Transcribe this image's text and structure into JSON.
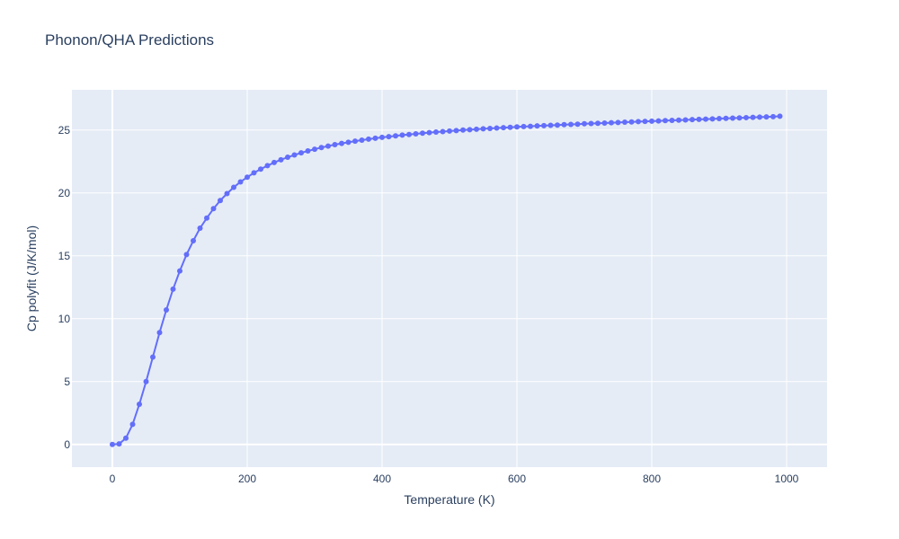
{
  "chart_data": {
    "type": "line",
    "title": "Phonon/QHA Predictions",
    "xlabel": "Temperature (K)",
    "ylabel": "Cp polyfit (J/K/mol)",
    "xlim": [
      -60,
      1060
    ],
    "ylim": [
      -1.8,
      28.2
    ],
    "xticks": [
      0,
      200,
      400,
      600,
      800,
      1000
    ],
    "yticks": [
      0,
      5,
      10,
      15,
      20,
      25
    ],
    "grid": true,
    "legend": "none",
    "colors": {
      "series": "#636efa",
      "plot_bg": "#e5ecf6",
      "grid": "#ffffff",
      "text": "#2a3f5f"
    },
    "series": [
      {
        "mode": "lines+markers",
        "x": [
          0,
          10,
          20,
          30,
          40,
          50,
          60,
          70,
          80,
          90,
          100,
          110,
          120,
          130,
          140,
          150,
          160,
          170,
          180,
          190,
          200,
          210,
          220,
          230,
          240,
          250,
          260,
          270,
          280,
          290,
          300,
          310,
          320,
          330,
          340,
          350,
          360,
          370,
          380,
          390,
          400,
          410,
          420,
          430,
          440,
          450,
          460,
          470,
          480,
          490,
          500,
          510,
          520,
          530,
          540,
          550,
          560,
          570,
          580,
          590,
          600,
          610,
          620,
          630,
          640,
          650,
          660,
          670,
          680,
          690,
          700,
          710,
          720,
          730,
          740,
          750,
          760,
          770,
          780,
          790,
          800,
          810,
          820,
          830,
          840,
          850,
          860,
          870,
          880,
          890,
          900,
          910,
          920,
          930,
          940,
          950,
          960,
          970,
          980,
          990
        ],
        "y": [
          0.0,
          0.05,
          0.5,
          1.6,
          3.2,
          5.0,
          6.95,
          8.9,
          10.7,
          12.35,
          13.8,
          15.1,
          16.2,
          17.2,
          18.0,
          18.75,
          19.4,
          19.95,
          20.45,
          20.88,
          21.25,
          21.6,
          21.9,
          22.17,
          22.42,
          22.64,
          22.84,
          23.02,
          23.19,
          23.34,
          23.48,
          23.61,
          23.73,
          23.84,
          23.94,
          24.03,
          24.12,
          24.2,
          24.28,
          24.35,
          24.42,
          24.48,
          24.54,
          24.6,
          24.65,
          24.7,
          24.75,
          24.8,
          24.84,
          24.88,
          24.92,
          24.96,
          25.0,
          25.03,
          25.07,
          25.1,
          25.13,
          25.16,
          25.19,
          25.22,
          25.25,
          25.28,
          25.3,
          25.33,
          25.35,
          25.38,
          25.4,
          25.43,
          25.45,
          25.47,
          25.5,
          25.52,
          25.54,
          25.56,
          25.58,
          25.6,
          25.63,
          25.65,
          25.67,
          25.69,
          25.71,
          25.73,
          25.75,
          25.77,
          25.79,
          25.81,
          25.83,
          25.85,
          25.87,
          25.89,
          25.91,
          25.93,
          25.95,
          25.97,
          25.99,
          26.01,
          26.03,
          26.05,
          26.07,
          26.1
        ]
      }
    ]
  }
}
